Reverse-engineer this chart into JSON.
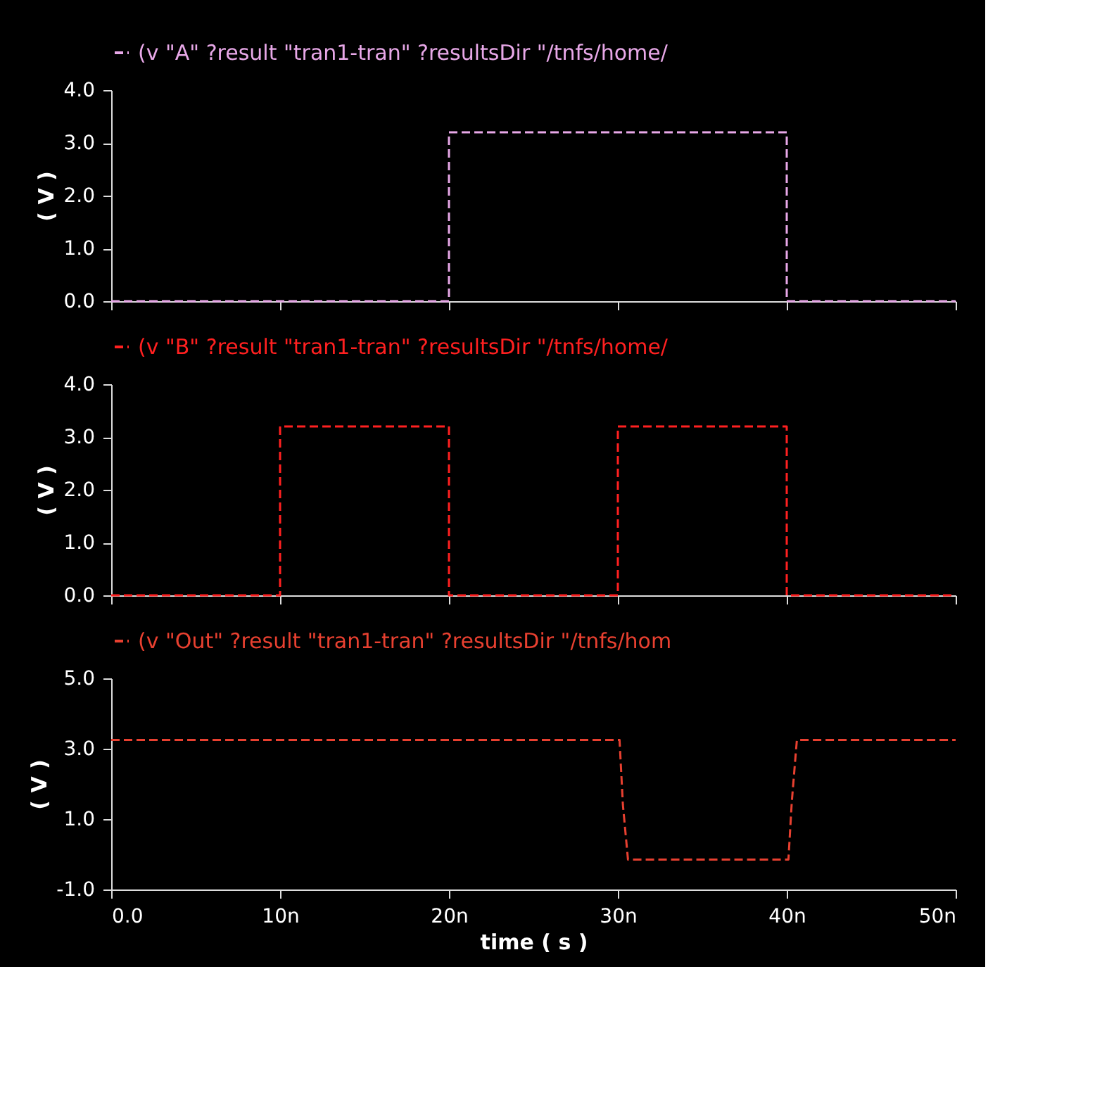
{
  "chart_data": [
    {
      "type": "line",
      "ylabel": "( V )",
      "xlim": [
        0,
        50
      ],
      "ylim": [
        0,
        4
      ],
      "yticks": [
        {
          "value": 0,
          "label": "0.0"
        },
        {
          "value": 1,
          "label": "1.0"
        },
        {
          "value": 2,
          "label": "2.0"
        },
        {
          "value": 3,
          "label": "3.0"
        },
        {
          "value": 4,
          "label": "4.0"
        }
      ],
      "tick_labels": "y",
      "legend": "top",
      "series": [
        {
          "name": "(v \"A\" ?result \"tran1-tran\" ?resultsDir \"/tnfs/home/",
          "color": "#e8a8e8",
          "line_style": "dashed",
          "x": [
            0,
            20,
            20,
            40,
            40,
            50
          ],
          "values": [
            0,
            0,
            3.2,
            3.2,
            0,
            0
          ]
        }
      ]
    },
    {
      "type": "line",
      "ylabel": "( V )",
      "xlim": [
        0,
        50
      ],
      "ylim": [
        0,
        4
      ],
      "yticks": [
        {
          "value": 0,
          "label": "0.0"
        },
        {
          "value": 1,
          "label": "1.0"
        },
        {
          "value": 2,
          "label": "2.0"
        },
        {
          "value": 3,
          "label": "3.0"
        },
        {
          "value": 4,
          "label": "4.0"
        }
      ],
      "tick_labels": "y",
      "legend": "top",
      "series": [
        {
          "name": "(v \"B\" ?result \"tran1-tran\" ?resultsDir \"/tnfs/home/",
          "color": "#ff2020",
          "line_style": "dashed",
          "x": [
            0,
            10,
            10,
            20,
            20,
            30,
            30,
            40,
            40,
            50
          ],
          "values": [
            0,
            0,
            3.2,
            3.2,
            0,
            0,
            3.2,
            3.2,
            0,
            0
          ]
        }
      ]
    },
    {
      "type": "line",
      "xlabel": "time ( s )",
      "ylabel": "( V )",
      "xlim": [
        0,
        50
      ],
      "ylim": [
        -1,
        5
      ],
      "xticks": [
        {
          "value": 0,
          "label": "0.0"
        },
        {
          "value": 10,
          "label": "10n"
        },
        {
          "value": 20,
          "label": "20n"
        },
        {
          "value": 30,
          "label": "30n"
        },
        {
          "value": 40,
          "label": "40n"
        },
        {
          "value": 50,
          "label": "50n"
        }
      ],
      "yticks": [
        {
          "value": -1,
          "label": "-1.0"
        },
        {
          "value": 1,
          "label": "1.0"
        },
        {
          "value": 3,
          "label": "3.0"
        },
        {
          "value": 5,
          "label": "5.0"
        }
      ],
      "legend": "top",
      "series": [
        {
          "name": "(v \"Out\" ?result \"tran1-tran\" ?resultsDir \"/tnfs/hom",
          "color": "#e84030",
          "line_style": "dashed",
          "x": [
            0,
            30.1,
            30.3,
            30.6,
            40.1,
            40.3,
            40.6,
            50
          ],
          "values": [
            3.25,
            3.25,
            1.4,
            -0.15,
            -0.15,
            1.5,
            3.25,
            3.25
          ]
        }
      ]
    }
  ]
}
